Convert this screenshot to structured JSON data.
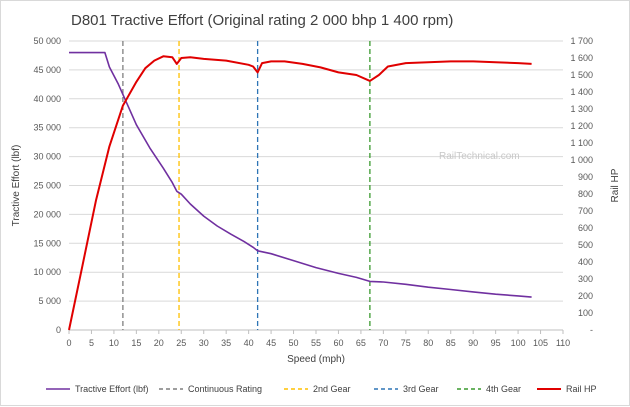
{
  "chart_data": {
    "type": "line",
    "title": "D801 Tractive Effort (Original rating 2 000 bhp 1 400 rpm)",
    "watermark": "RailTechnical.com",
    "xlabel": "Speed (mph)",
    "ylabel_left": "Tractive Effort (lbf)",
    "ylabel_right": "Rail HP",
    "xlim": [
      0,
      110
    ],
    "ylim_left": [
      0,
      50000
    ],
    "ylim_right": [
      0,
      1700
    ],
    "x_ticks": [
      0,
      5,
      10,
      15,
      20,
      25,
      30,
      35,
      40,
      45,
      50,
      55,
      60,
      65,
      70,
      75,
      80,
      85,
      90,
      95,
      100,
      105,
      110
    ],
    "y_left_ticks": [
      0,
      5000,
      10000,
      15000,
      20000,
      25000,
      30000,
      35000,
      40000,
      45000,
      50000
    ],
    "y_left_tick_labels": [
      "0",
      "5 000",
      "10 000",
      "15 000",
      "20 000",
      "25 000",
      "30 000",
      "35 000",
      "40 000",
      "45 000",
      "50 000"
    ],
    "y_right_ticks": [
      0,
      100,
      200,
      300,
      400,
      500,
      600,
      700,
      800,
      900,
      1000,
      1100,
      1200,
      1300,
      1400,
      1500,
      1600,
      1700
    ],
    "y_right_tick_labels": [
      "-",
      "100",
      "200",
      "300",
      "400",
      "500",
      "600",
      "700",
      "800",
      "900",
      "1 000",
      "1 100",
      "1 200",
      "1 300",
      "1 400",
      "1 500",
      "1 600",
      "1 700"
    ],
    "grid": true,
    "legend_position": "bottom",
    "series": [
      {
        "name": "Tractive Effort (lbf)",
        "axis": "left",
        "color": "#7030a0",
        "dash": "solid",
        "points": [
          [
            0,
            48000
          ],
          [
            8,
            48000
          ],
          [
            9,
            45500
          ],
          [
            11,
            42500
          ],
          [
            13,
            39000
          ],
          [
            15,
            35500
          ],
          [
            18,
            31500
          ],
          [
            21,
            28000
          ],
          [
            23,
            25500
          ],
          [
            24,
            24000
          ],
          [
            25,
            23500
          ],
          [
            27,
            21800
          ],
          [
            30,
            19700
          ],
          [
            33,
            18000
          ],
          [
            36,
            16600
          ],
          [
            39,
            15300
          ],
          [
            41,
            14300
          ],
          [
            42,
            13700
          ],
          [
            45,
            13200
          ],
          [
            50,
            12000
          ],
          [
            55,
            10800
          ],
          [
            60,
            9800
          ],
          [
            64,
            9100
          ],
          [
            67,
            8400
          ],
          [
            70,
            8300
          ],
          [
            75,
            7900
          ],
          [
            80,
            7400
          ],
          [
            85,
            7000
          ],
          [
            90,
            6600
          ],
          [
            95,
            6200
          ],
          [
            100,
            5900
          ],
          [
            103,
            5700
          ]
        ]
      },
      {
        "name": "Continuous Rating",
        "axis": "vline",
        "color": "#7f7f7f",
        "dash": "dashed",
        "x": 12
      },
      {
        "name": "2nd Gear",
        "axis": "vline",
        "color": "#ffc000",
        "dash": "dashed",
        "x": 24.5
      },
      {
        "name": "3rd Gear",
        "axis": "vline",
        "color": "#2e75b6",
        "dash": "dashed",
        "x": 42
      },
      {
        "name": "4th Gear",
        "axis": "vline",
        "color": "#3a9a2e",
        "dash": "dashed",
        "x": 67
      },
      {
        "name": "Rail HP",
        "axis": "right",
        "color": "#e00000",
        "dash": "solid",
        "points": [
          [
            0,
            0
          ],
          [
            3,
            380
          ],
          [
            6,
            760
          ],
          [
            9,
            1080
          ],
          [
            12,
            1320
          ],
          [
            15,
            1460
          ],
          [
            17,
            1540
          ],
          [
            19,
            1585
          ],
          [
            21,
            1610
          ],
          [
            23,
            1605
          ],
          [
            24,
            1565
          ],
          [
            25,
            1600
          ],
          [
            27,
            1605
          ],
          [
            30,
            1595
          ],
          [
            35,
            1585
          ],
          [
            40,
            1560
          ],
          [
            41,
            1550
          ],
          [
            42,
            1515
          ],
          [
            43,
            1570
          ],
          [
            45,
            1580
          ],
          [
            48,
            1580
          ],
          [
            52,
            1565
          ],
          [
            56,
            1545
          ],
          [
            60,
            1515
          ],
          [
            64,
            1500
          ],
          [
            67,
            1465
          ],
          [
            69,
            1500
          ],
          [
            71,
            1550
          ],
          [
            75,
            1570
          ],
          [
            80,
            1575
          ],
          [
            85,
            1580
          ],
          [
            90,
            1580
          ],
          [
            95,
            1575
          ],
          [
            100,
            1570
          ],
          [
            103,
            1565
          ]
        ]
      }
    ]
  }
}
